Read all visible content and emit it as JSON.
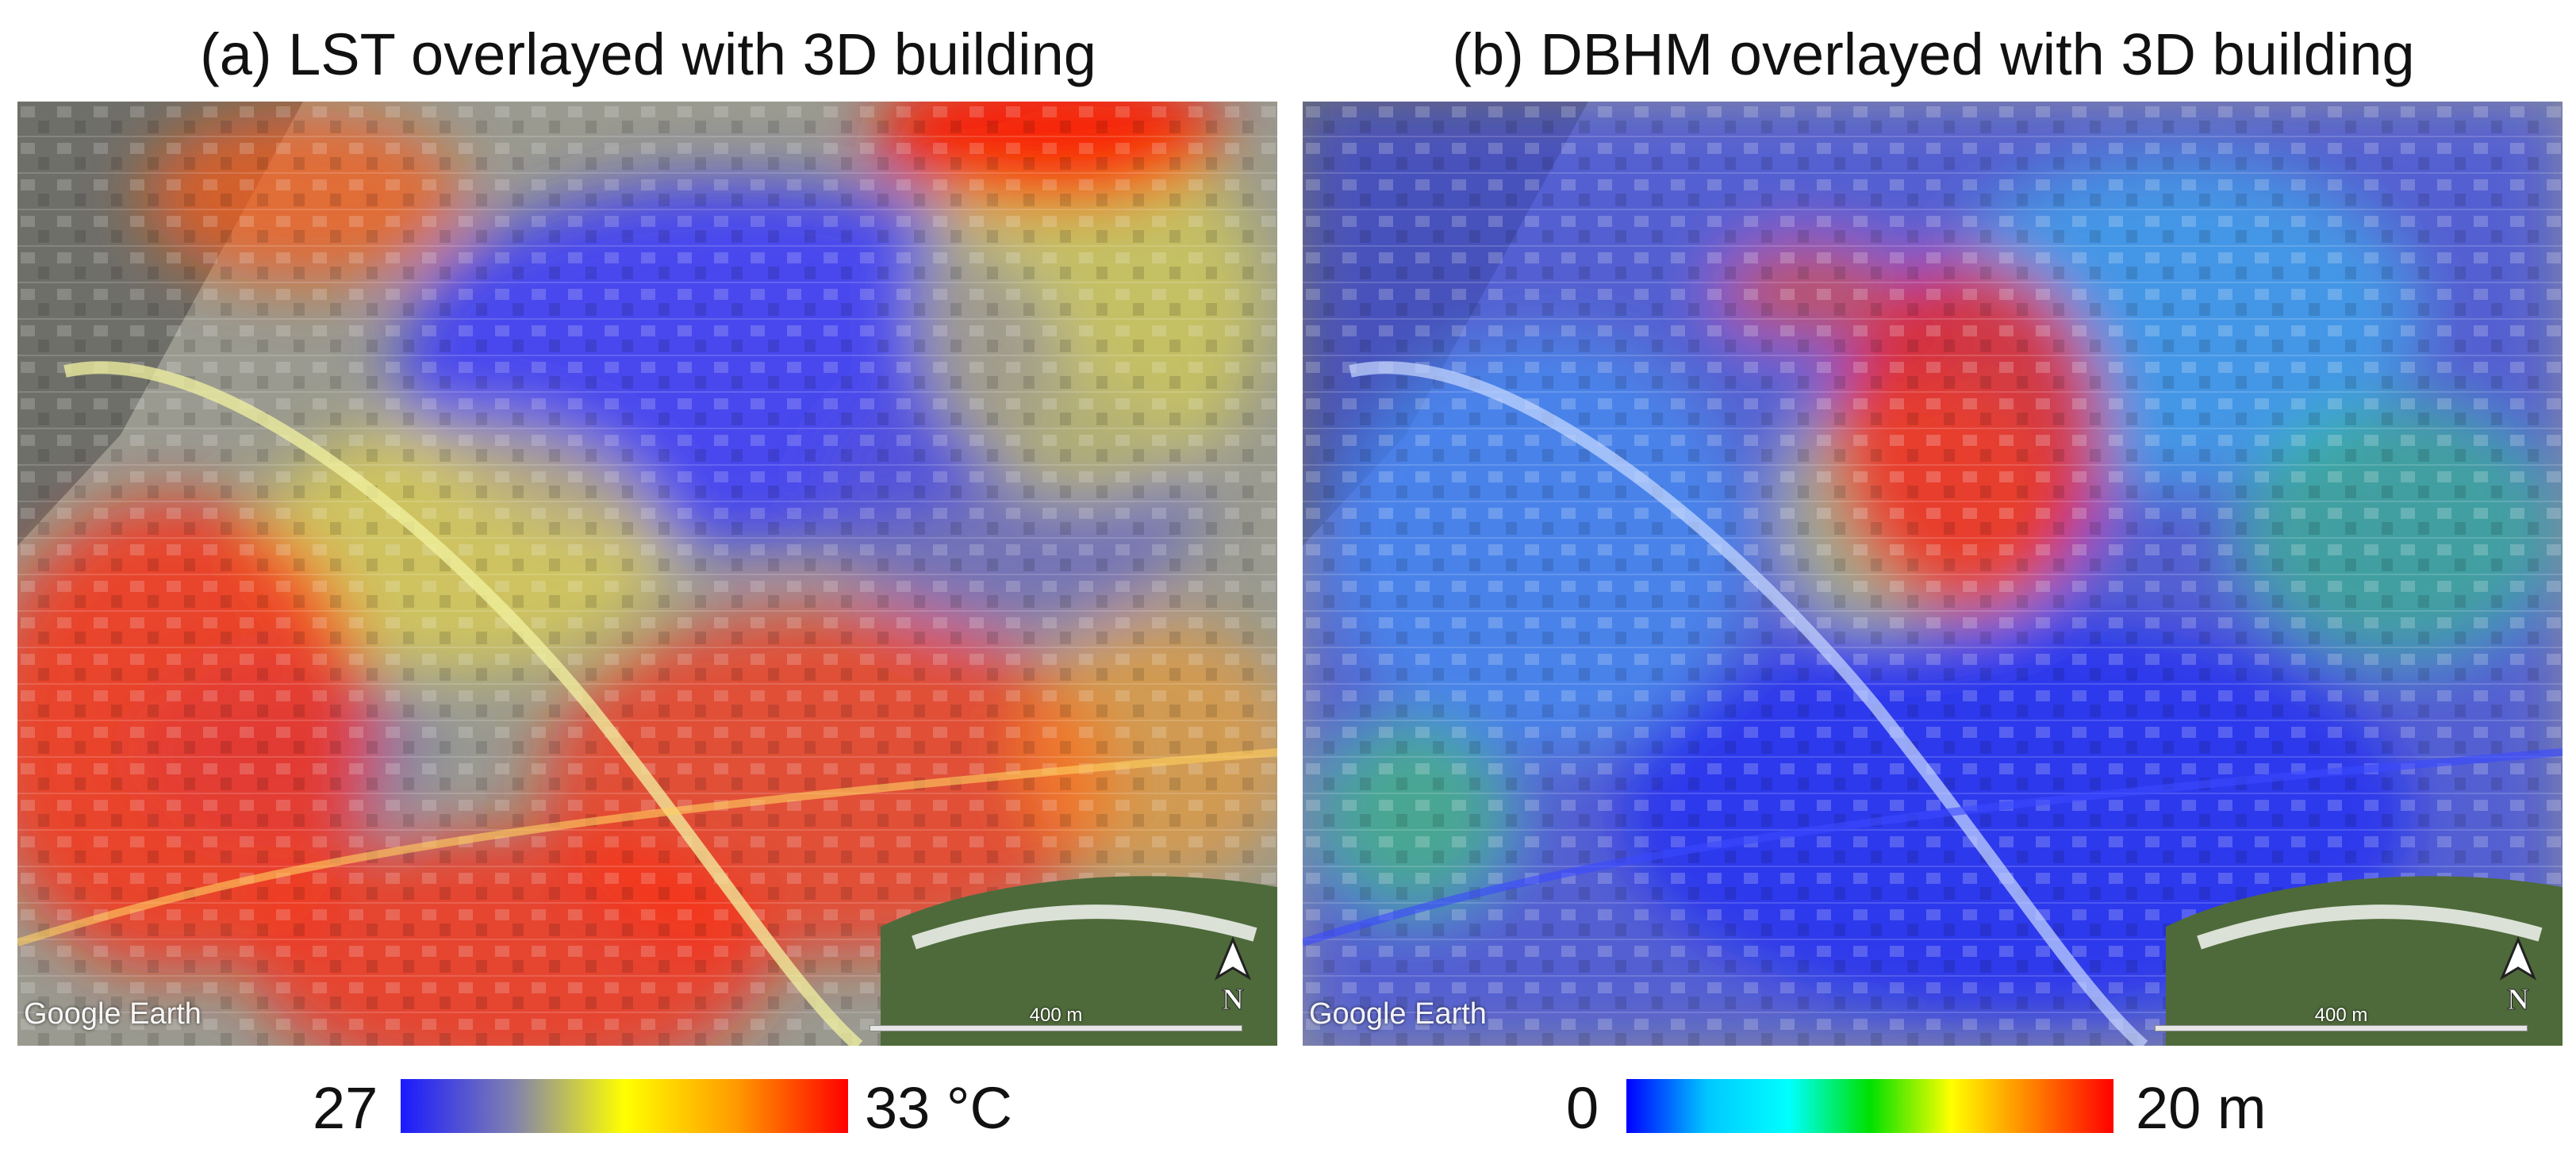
{
  "panels": [
    {
      "title": "(a) LST overlayed with 3D building",
      "watermark": "Google Earth",
      "scale_label": "400 m",
      "north_label": "N",
      "legend": {
        "min": "27",
        "max": "33 °C",
        "colors": [
          "#1a1aff",
          "#8080b0",
          "#ffff00",
          "#ff9a00",
          "#ff0000"
        ]
      },
      "icon": "north-arrow-icon"
    },
    {
      "title": "(b) DBHM overlayed with 3D building",
      "watermark": "Google Earth",
      "scale_label": "400 m",
      "north_label": "N",
      "legend": {
        "min": "0",
        "max": "20 m",
        "colors": [
          "#0000ff",
          "#00c8ff",
          "#00ffff",
          "#00e000",
          "#ffff00",
          "#ff8000",
          "#ff0000"
        ]
      },
      "icon": "north-arrow-icon"
    }
  ]
}
